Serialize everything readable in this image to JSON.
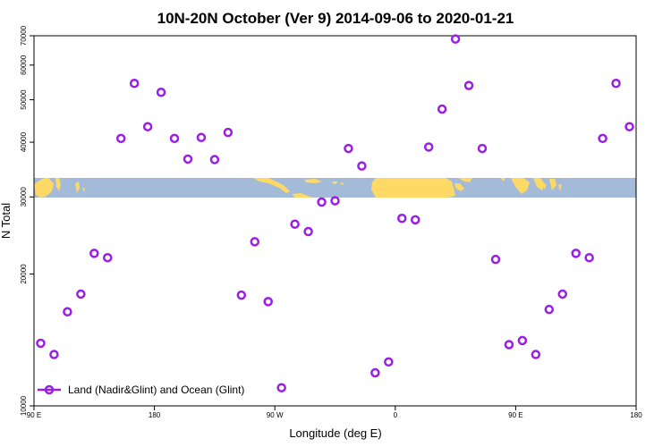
{
  "chart_data": {
    "type": "scatter",
    "title": "10N-20N October (Ver 9)   2014-09-06 to 2020-01-21",
    "xlabel": "Longitude (deg E)",
    "ylabel": "N Total",
    "xlim": [
      90,
      540
    ],
    "ylim": [
      10000,
      70000
    ],
    "y_ticks": [
      10000,
      20000,
      30000,
      40000,
      50000,
      60000,
      70000
    ],
    "y_tick_labels": [
      "10000",
      "20000",
      "30000",
      "40000",
      "50000",
      "60000",
      "70000"
    ],
    "x_ticks": [
      90,
      180,
      270,
      360,
      450,
      540
    ],
    "x_tick_labels": [
      "90 E",
      "180",
      "90 W",
      "0",
      "90 E",
      "180"
    ],
    "grid": false,
    "background_map_band": {
      "latitude_range": "10N-20N",
      "y_range": [
        30000,
        33600
      ],
      "ocean_color": "#a3bbd9",
      "land_color": "#ffd966"
    },
    "series": [
      {
        "name": "Land (Nadir&Glint) and Ocean (Glint)",
        "color": "#9a1ee6",
        "marker": "open-circle",
        "x": [
          95,
          105,
          115,
          125,
          135,
          145,
          155,
          165,
          175,
          185,
          195,
          205,
          215,
          225,
          235,
          245,
          255,
          265,
          275,
          285,
          295,
          305,
          315,
          325,
          335,
          345,
          355,
          365,
          375,
          385,
          395,
          405,
          415,
          425,
          435,
          445,
          455,
          465,
          475,
          485,
          495,
          505,
          515,
          525,
          535
        ],
        "y": [
          13900,
          13100,
          16400,
          18000,
          22300,
          21800,
          40800,
          54500,
          43400,
          52000,
          40800,
          36600,
          41000,
          36500,
          42100,
          17900,
          23700,
          17300,
          11000,
          26000,
          25000,
          29200,
          29400,
          38700,
          35300,
          11900,
          12600,
          26800,
          26600,
          39000,
          47600,
          68800,
          53900,
          38700,
          21600,
          13800,
          14100,
          13100,
          16600,
          18000,
          22300,
          21800,
          40800,
          54500,
          43400
        ]
      }
    ],
    "legend": {
      "position": "bottom-left"
    }
  }
}
